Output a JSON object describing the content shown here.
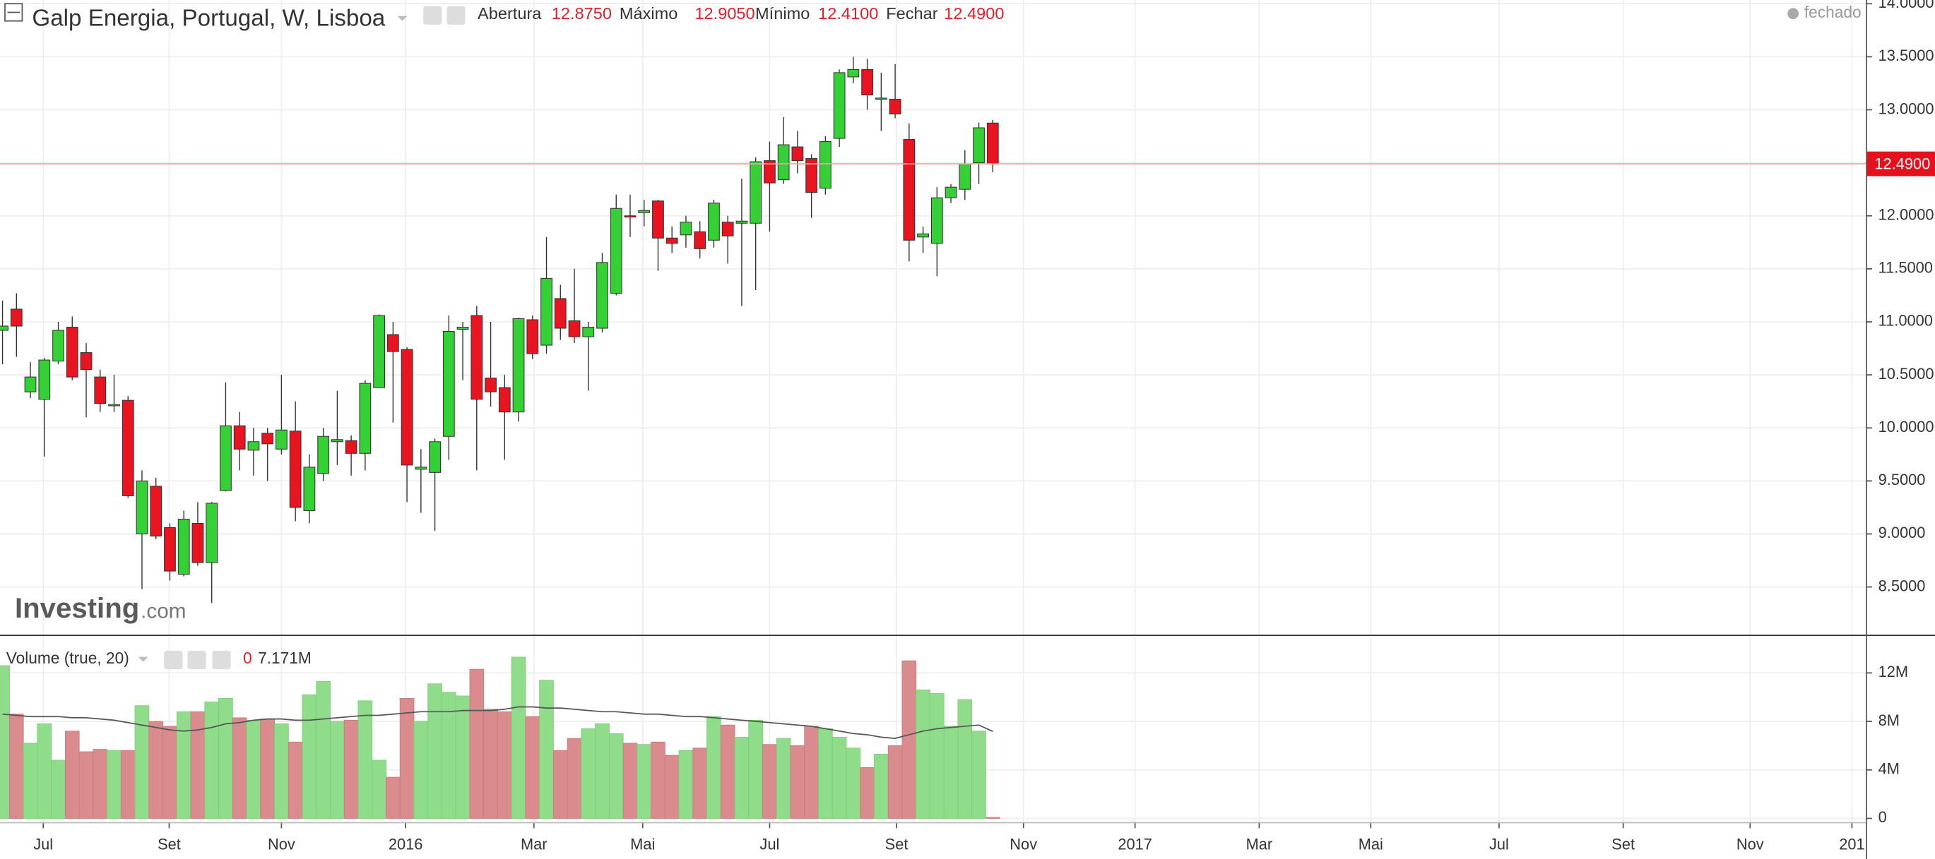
{
  "chart_data": [
    {
      "type": "candlestick",
      "title": "Galp Energia, Portugal, W, Lisboa",
      "status": "fechado",
      "ohlc_header": [
        {
          "name": "Abertura",
          "label": "12.8750"
        },
        {
          "name": "Máximo",
          "label": "12.9050"
        },
        {
          "name": "Mínimo",
          "label": "12.4100"
        },
        {
          "name": "Fechar",
          "label": "12.4900"
        }
      ],
      "watermark": [
        "Investing",
        ".com"
      ],
      "x": [
        0,
        1,
        2,
        3,
        4,
        5,
        6,
        7,
        8,
        9,
        10,
        11,
        12,
        13,
        14,
        15,
        16,
        17,
        18,
        19,
        20,
        21,
        22,
        23,
        24,
        25,
        26,
        27,
        28,
        29,
        30,
        31,
        32,
        33,
        34,
        35,
        36,
        37,
        38,
        39,
        40,
        41,
        42,
        43,
        44,
        45,
        46,
        47,
        48,
        49,
        50,
        51,
        52,
        53,
        54,
        55,
        56,
        57,
        58,
        59,
        60,
        61,
        62,
        63,
        64,
        65,
        66,
        67,
        68,
        69,
        70,
        71
      ],
      "open": [
        10.92,
        11.12,
        10.34,
        10.27,
        10.63,
        10.95,
        10.71,
        10.48,
        10.21,
        10.26,
        9.0,
        9.45,
        9.06,
        8.62,
        9.1,
        8.73,
        9.41,
        10.02,
        9.79,
        9.95,
        9.8,
        9.97,
        9.22,
        9.57,
        9.87,
        9.88,
        9.76,
        10.38,
        10.88,
        10.74,
        9.61,
        9.58,
        9.92,
        10.93,
        11.06,
        10.47,
        10.38,
        10.15,
        11.02,
        10.78,
        11.22,
        11.01,
        10.86,
        10.94,
        11.27,
        12.0,
        12.03,
        12.14,
        11.79,
        11.82,
        11.85,
        11.77,
        11.94,
        11.93,
        11.93,
        12.52,
        12.34,
        12.65,
        12.54,
        12.26,
        12.73,
        13.31,
        13.38,
        13.1,
        13.1,
        12.72,
        11.8,
        11.74,
        12.17,
        12.25,
        12.5,
        12.875
      ],
      "high": [
        11.2,
        11.27,
        10.62,
        10.66,
        11.0,
        11.05,
        10.8,
        10.55,
        10.5,
        10.3,
        9.6,
        9.53,
        9.1,
        9.22,
        9.3,
        9.3,
        10.43,
        10.15,
        10.0,
        10.0,
        10.5,
        10.25,
        9.75,
        10.0,
        10.35,
        9.93,
        10.45,
        11.07,
        11.0,
        10.76,
        9.8,
        9.9,
        11.06,
        11.0,
        11.15,
        11.0,
        10.5,
        11.04,
        11.06,
        11.8,
        11.35,
        11.5,
        11.0,
        11.65,
        12.2,
        12.2,
        12.15,
        12.15,
        11.9,
        12.0,
        11.95,
        12.15,
        12.0,
        12.35,
        12.55,
        12.7,
        12.93,
        12.8,
        12.58,
        12.75,
        13.38,
        13.5,
        13.48,
        13.35,
        13.43,
        12.87,
        11.9,
        12.27,
        12.3,
        12.62,
        12.88,
        12.905
      ],
      "low": [
        10.6,
        10.67,
        10.28,
        9.73,
        10.6,
        10.45,
        10.1,
        10.15,
        10.15,
        9.34,
        8.48,
        8.95,
        8.56,
        8.6,
        8.7,
        8.35,
        9.4,
        9.6,
        9.55,
        9.5,
        9.75,
        9.12,
        9.1,
        9.5,
        9.65,
        9.55,
        9.6,
        10.38,
        10.05,
        9.3,
        9.2,
        9.03,
        9.7,
        10.45,
        9.6,
        10.2,
        9.7,
        10.06,
        10.65,
        10.7,
        10.83,
        10.8,
        10.35,
        10.9,
        11.25,
        11.8,
        11.9,
        11.48,
        11.65,
        11.7,
        11.6,
        11.7,
        11.55,
        11.15,
        11.3,
        11.85,
        12.3,
        12.4,
        11.98,
        12.2,
        12.65,
        13.25,
        13.0,
        12.8,
        12.92,
        11.57,
        11.65,
        11.43,
        12.12,
        12.15,
        12.3,
        12.41
      ],
      "close": [
        10.96,
        10.96,
        10.48,
        10.64,
        10.92,
        10.48,
        10.55,
        10.23,
        10.22,
        9.36,
        9.5,
        8.98,
        8.65,
        9.14,
        8.73,
        9.29,
        10.02,
        9.8,
        9.87,
        9.85,
        9.98,
        9.25,
        9.63,
        9.92,
        9.89,
        9.76,
        10.42,
        11.06,
        10.72,
        9.65,
        9.63,
        9.87,
        10.91,
        10.95,
        10.27,
        10.34,
        10.15,
        11.03,
        10.7,
        11.41,
        10.94,
        10.86,
        10.95,
        11.56,
        12.07,
        11.99,
        12.05,
        11.79,
        11.74,
        11.94,
        11.69,
        12.12,
        11.81,
        11.95,
        12.51,
        12.31,
        12.67,
        12.52,
        12.22,
        12.7,
        13.35,
        13.38,
        13.14,
        13.11,
        12.96,
        11.77,
        11.83,
        12.17,
        12.27,
        12.49,
        12.83,
        12.49
      ],
      "up_color": "#35d035",
      "down_color": "#e8141f",
      "last_price": {
        "value": 12.49,
        "label": "12.4900"
      },
      "xlim": [
        -0.18,
        133.6
      ],
      "ylim": [
        8.05,
        14.035
      ],
      "yticks": [
        {
          "value": 14,
          "label": "14.0000"
        },
        {
          "value": 13.5,
          "label": "13.5000"
        },
        {
          "value": 13,
          "label": "13.0000"
        },
        {
          "value": 12.5,
          "label": "12.5000"
        },
        {
          "value": 12,
          "label": "12.0000"
        },
        {
          "value": 11.5,
          "label": "11.5000"
        },
        {
          "value": 11,
          "label": "11.0000"
        },
        {
          "value": 10.5,
          "label": "10.5000"
        },
        {
          "value": 10,
          "label": "10.0000"
        },
        {
          "value": 9.5,
          "label": "9.5000"
        },
        {
          "value": 9,
          "label": "9.0000"
        },
        {
          "value": 8.5,
          "label": "8.5000"
        }
      ],
      "grid": true
    },
    {
      "type": "bar",
      "title": "Volume (true, 20)",
      "x": [
        0,
        1,
        2,
        3,
        4,
        5,
        6,
        7,
        8,
        9,
        10,
        11,
        12,
        13,
        14,
        15,
        16,
        17,
        18,
        19,
        20,
        21,
        22,
        23,
        24,
        25,
        26,
        27,
        28,
        29,
        30,
        31,
        32,
        33,
        34,
        35,
        36,
        37,
        38,
        39,
        40,
        41,
        42,
        43,
        44,
        45,
        46,
        47,
        48,
        49,
        50,
        51,
        52,
        53,
        54,
        55,
        56,
        57,
        58,
        59,
        60,
        61,
        62,
        63,
        64,
        65,
        66,
        67,
        68,
        69,
        70,
        71
      ],
      "values": [
        12.6,
        8.6,
        6.2,
        7.8,
        4.8,
        7.2,
        5.5,
        5.7,
        5.6,
        5.6,
        9.3,
        8.0,
        7.6,
        8.8,
        8.8,
        9.6,
        9.9,
        8.3,
        8.1,
        8.2,
        7.8,
        6.3,
        10.2,
        11.3,
        8.0,
        8.1,
        9.7,
        4.8,
        3.4,
        9.9,
        8.0,
        11.1,
        10.4,
        10.1,
        12.3,
        9.0,
        8.8,
        13.3,
        8.4,
        11.4,
        5.6,
        6.6,
        7.4,
        7.8,
        7.0,
        6.2,
        6.1,
        6.3,
        5.2,
        5.6,
        5.8,
        8.4,
        7.7,
        6.7,
        8.1,
        6.1,
        6.6,
        6.0,
        7.6,
        7.4,
        6.7,
        5.8,
        4.2,
        5.3,
        6.0,
        13.0,
        10.6,
        10.3,
        7.6,
        9.8,
        7.2,
        0
      ],
      "ma": [
        8.6,
        8.5,
        8.4,
        8.4,
        8.4,
        8.3,
        8.3,
        8.2,
        8.1,
        7.9,
        7.7,
        7.5,
        7.3,
        7.2,
        7.3,
        7.5,
        7.8,
        7.9,
        8.1,
        8.2,
        8.2,
        8.1,
        8.1,
        8.2,
        8.3,
        8.4,
        8.5,
        8.5,
        8.6,
        8.7,
        8.8,
        8.8,
        8.8,
        8.9,
        8.9,
        8.9,
        9.0,
        9.2,
        9.2,
        9.1,
        9.1,
        9.0,
        8.9,
        8.8,
        8.8,
        8.7,
        8.6,
        8.6,
        8.5,
        8.4,
        8.4,
        8.3,
        8.2,
        8.1,
        8.0,
        7.9,
        7.8,
        7.7,
        7.6,
        7.4,
        7.2,
        7.0,
        6.9,
        6.7,
        6.6,
        6.9,
        7.2,
        7.4,
        7.5,
        7.6,
        7.7,
        7.171
      ],
      "ma_label": "7.171M",
      "up_color": "#8fdc8a",
      "down_color": "#da8b8d",
      "ma_color": "#555555",
      "xlim": [
        -0.18,
        133.6
      ],
      "ylim": [
        -0.3,
        15.05
      ],
      "yticks": [
        {
          "value": 12,
          "label": "12M"
        },
        {
          "value": 8,
          "label": "8M"
        },
        {
          "value": 4,
          "label": "4M"
        },
        0
      ],
      "xticks": [
        {
          "value": 2.92,
          "label": "Jul"
        },
        {
          "value": 11.95,
          "label": "Set"
        },
        {
          "value": 20.0,
          "label": "Nov"
        },
        {
          "value": 28.9,
          "label": "2016"
        },
        {
          "value": 38.1,
          "label": "Mar"
        },
        {
          "value": 45.9,
          "label": "Mai"
        },
        {
          "value": 55.0,
          "label": "Jul"
        },
        {
          "value": 64.1,
          "label": "Set"
        },
        {
          "value": 73.2,
          "label": "Nov"
        },
        {
          "value": 81.2,
          "label": "2017"
        },
        {
          "value": 90.1,
          "label": "Mar"
        },
        {
          "value": 98.1,
          "label": "Mai"
        },
        {
          "value": 107.3,
          "label": "Jul"
        },
        {
          "value": 116.2,
          "label": "Set"
        },
        {
          "value": 125.3,
          "label": "Nov"
        },
        {
          "value": 132.6,
          "label": "201"
        }
      ],
      "grid": true
    }
  ]
}
